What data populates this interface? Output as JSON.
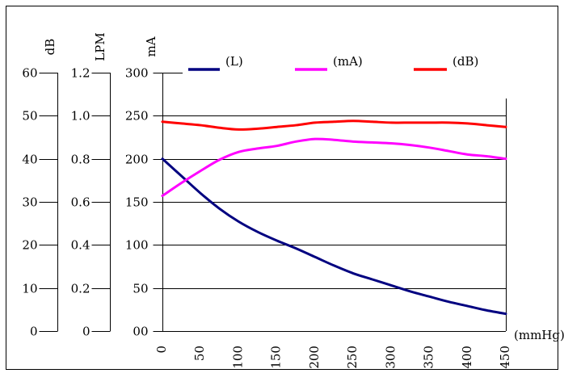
{
  "chart_data": {
    "type": "line",
    "x": [
      0,
      25,
      50,
      75,
      100,
      125,
      150,
      175,
      200,
      225,
      250,
      275,
      300,
      325,
      350,
      375,
      400,
      425,
      450
    ],
    "x_ticks": [
      "0",
      "50",
      "100",
      "150",
      "200",
      "250",
      "300",
      "350",
      "400",
      "450"
    ],
    "xlabel": "(mmHg)",
    "xlim": [
      0,
      450
    ],
    "series": [
      {
        "name": "(L)",
        "color": "#000080",
        "axis": "mA",
        "values": [
          200,
          180,
          160,
          142,
          127,
          115,
          105,
          96,
          86,
          76,
          67,
          60,
          53,
          46,
          40,
          34,
          29,
          24,
          20
        ]
      },
      {
        "name": "(mA)",
        "color": "#ff00ff",
        "axis": "mA",
        "values": [
          157,
          172,
          186,
          199,
          208,
          212,
          215,
          220,
          223,
          222,
          220,
          219,
          218,
          216,
          213,
          209,
          205,
          203,
          200
        ]
      },
      {
        "name": "(dB)",
        "color": "#ff0000",
        "axis": "mA",
        "values": [
          243,
          241,
          239,
          236,
          234,
          235,
          237,
          239,
          242,
          243,
          244,
          243,
          242,
          242,
          242,
          242,
          241,
          239,
          237
        ]
      }
    ],
    "y_axes": [
      {
        "unit": "dB",
        "ticks": [
          "0",
          "10",
          "20",
          "30",
          "40",
          "50",
          "60"
        ],
        "ylim": [
          0,
          60
        ]
      },
      {
        "unit": "LPM",
        "ticks": [
          "0",
          "0.2",
          "0.4",
          "0.6",
          "0.8",
          "1.0",
          "1.2"
        ],
        "ylim": [
          0,
          1.2
        ]
      },
      {
        "unit": "mA",
        "ticks": [
          "00",
          "50",
          "100",
          "150",
          "200",
          "250",
          "300"
        ],
        "ylim": [
          0,
          300
        ]
      }
    ],
    "grid": true,
    "legend_position": "top"
  },
  "colors": {
    "frame": "#000000",
    "background": "#ffffff"
  }
}
